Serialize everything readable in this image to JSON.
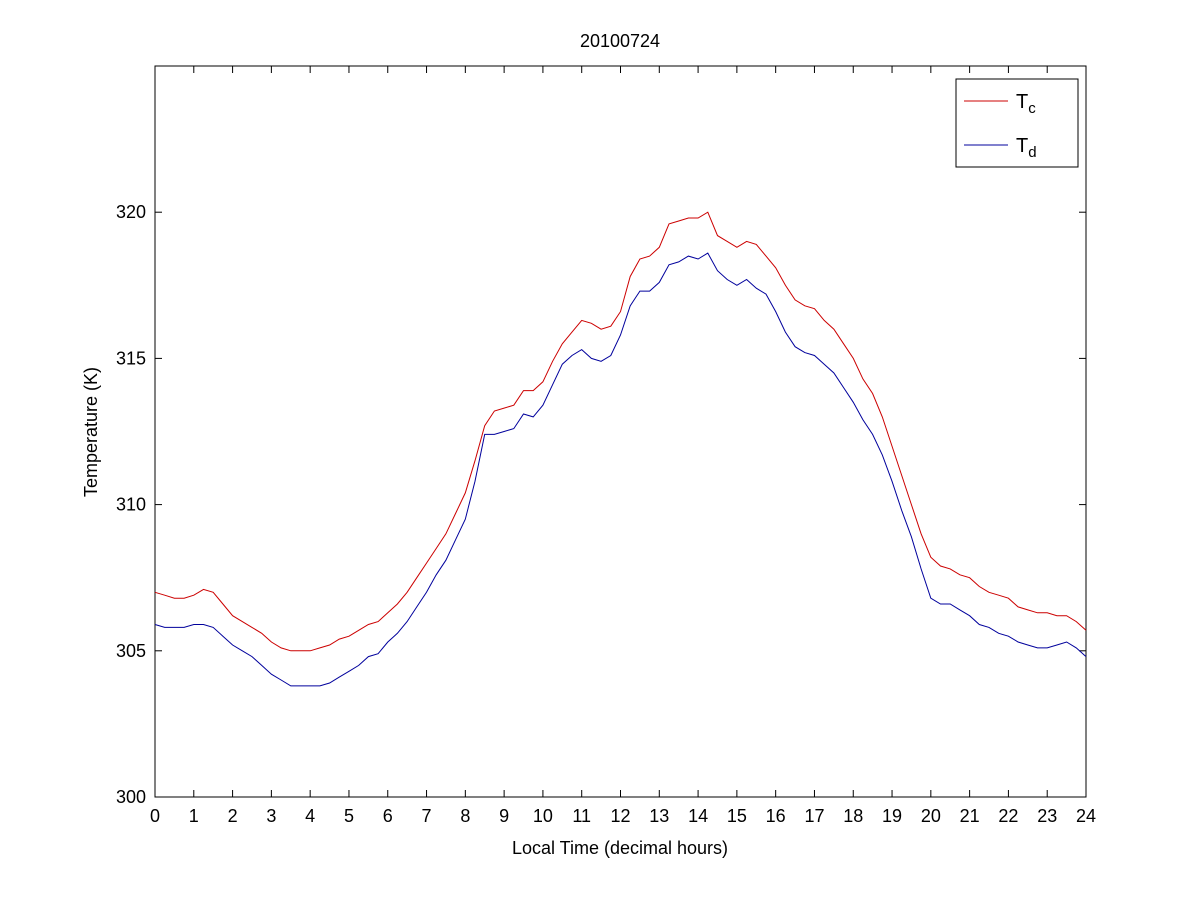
{
  "chart_data": {
    "type": "line",
    "title": "20100724",
    "xlabel": "Local Time (decimal hours)",
    "ylabel": "Temperature (K)",
    "xlim": [
      0,
      24
    ],
    "ylim": [
      300,
      325
    ],
    "xticks": [
      0,
      1,
      2,
      3,
      4,
      5,
      6,
      7,
      8,
      9,
      10,
      11,
      12,
      13,
      14,
      15,
      16,
      17,
      18,
      19,
      20,
      21,
      22,
      23,
      24
    ],
    "yticks": [
      300,
      305,
      310,
      315,
      320
    ],
    "grid": false,
    "legend_position": "top-right",
    "axis_color": "#000000",
    "background_color": "#ffffff",
    "x": [
      0,
      0.25,
      0.5,
      0.75,
      1,
      1.25,
      1.5,
      1.75,
      2,
      2.25,
      2.5,
      2.75,
      3,
      3.25,
      3.5,
      3.75,
      4,
      4.25,
      4.5,
      4.75,
      5,
      5.25,
      5.5,
      5.75,
      6,
      6.25,
      6.5,
      6.75,
      7,
      7.25,
      7.5,
      7.75,
      8,
      8.25,
      8.5,
      8.75,
      9,
      9.25,
      9.5,
      9.75,
      10,
      10.25,
      10.5,
      10.75,
      11,
      11.25,
      11.5,
      11.75,
      12,
      12.25,
      12.5,
      12.75,
      13,
      13.25,
      13.5,
      13.75,
      14,
      14.25,
      14.5,
      14.75,
      15,
      15.25,
      15.5,
      15.75,
      16,
      16.25,
      16.5,
      16.75,
      17,
      17.25,
      17.5,
      17.75,
      18,
      18.25,
      18.5,
      18.75,
      19,
      19.25,
      19.5,
      19.75,
      20,
      20.25,
      20.5,
      20.75,
      21,
      21.25,
      21.5,
      21.75,
      22,
      22.25,
      22.5,
      22.75,
      23,
      23.25,
      23.5,
      23.75,
      24
    ],
    "series": [
      {
        "name": "T_c",
        "label_main": "T",
        "label_sub": "c",
        "color": "#cc0000",
        "values": [
          307.0,
          306.9,
          306.8,
          306.8,
          306.9,
          307.1,
          307.0,
          306.6,
          306.2,
          306.0,
          305.8,
          305.6,
          305.3,
          305.1,
          305.0,
          305.0,
          305.0,
          305.1,
          305.2,
          305.4,
          305.5,
          305.7,
          305.9,
          306.0,
          306.3,
          306.6,
          307.0,
          307.5,
          308.0,
          308.5,
          309.0,
          309.7,
          310.4,
          311.5,
          312.7,
          313.2,
          313.3,
          313.4,
          313.9,
          313.9,
          314.2,
          314.9,
          315.5,
          315.9,
          316.3,
          316.2,
          316.0,
          316.1,
          316.6,
          317.8,
          318.4,
          318.5,
          318.8,
          319.6,
          319.7,
          319.8,
          319.8,
          320.0,
          319.2,
          319.0,
          318.8,
          319.0,
          318.9,
          318.5,
          318.1,
          317.5,
          317.0,
          316.8,
          316.7,
          316.3,
          316.0,
          315.5,
          315.0,
          314.3,
          313.8,
          313.0,
          312.0,
          311.0,
          310.0,
          309.0,
          308.2,
          307.9,
          307.8,
          307.6,
          307.5,
          307.2,
          307.0,
          306.9,
          306.8,
          306.5,
          306.4,
          306.3,
          306.3,
          306.2,
          306.2,
          306.0,
          305.7
        ]
      },
      {
        "name": "T_d",
        "label_main": "T",
        "label_sub": "d",
        "color": "#00009c",
        "values": [
          305.9,
          305.8,
          305.8,
          305.8,
          305.9,
          305.9,
          305.8,
          305.5,
          305.2,
          305.0,
          304.8,
          304.5,
          304.2,
          304.0,
          303.8,
          303.8,
          303.8,
          303.8,
          303.9,
          304.1,
          304.3,
          304.5,
          304.8,
          304.9,
          305.3,
          305.6,
          306.0,
          306.5,
          307.0,
          307.6,
          308.1,
          308.8,
          309.5,
          310.8,
          312.4,
          312.4,
          312.5,
          312.6,
          313.1,
          313.0,
          313.4,
          314.1,
          314.8,
          315.1,
          315.3,
          315.0,
          314.9,
          315.1,
          315.8,
          316.8,
          317.3,
          317.3,
          317.6,
          318.2,
          318.3,
          318.5,
          318.4,
          318.6,
          318.0,
          317.7,
          317.5,
          317.7,
          317.4,
          317.2,
          316.6,
          315.9,
          315.4,
          315.2,
          315.1,
          314.8,
          314.5,
          314.0,
          313.5,
          312.9,
          312.4,
          311.7,
          310.8,
          309.8,
          308.9,
          307.8,
          306.8,
          306.6,
          306.6,
          306.4,
          306.2,
          305.9,
          305.8,
          305.6,
          305.5,
          305.3,
          305.2,
          305.1,
          305.1,
          305.2,
          305.3,
          305.1,
          304.8
        ]
      }
    ]
  }
}
